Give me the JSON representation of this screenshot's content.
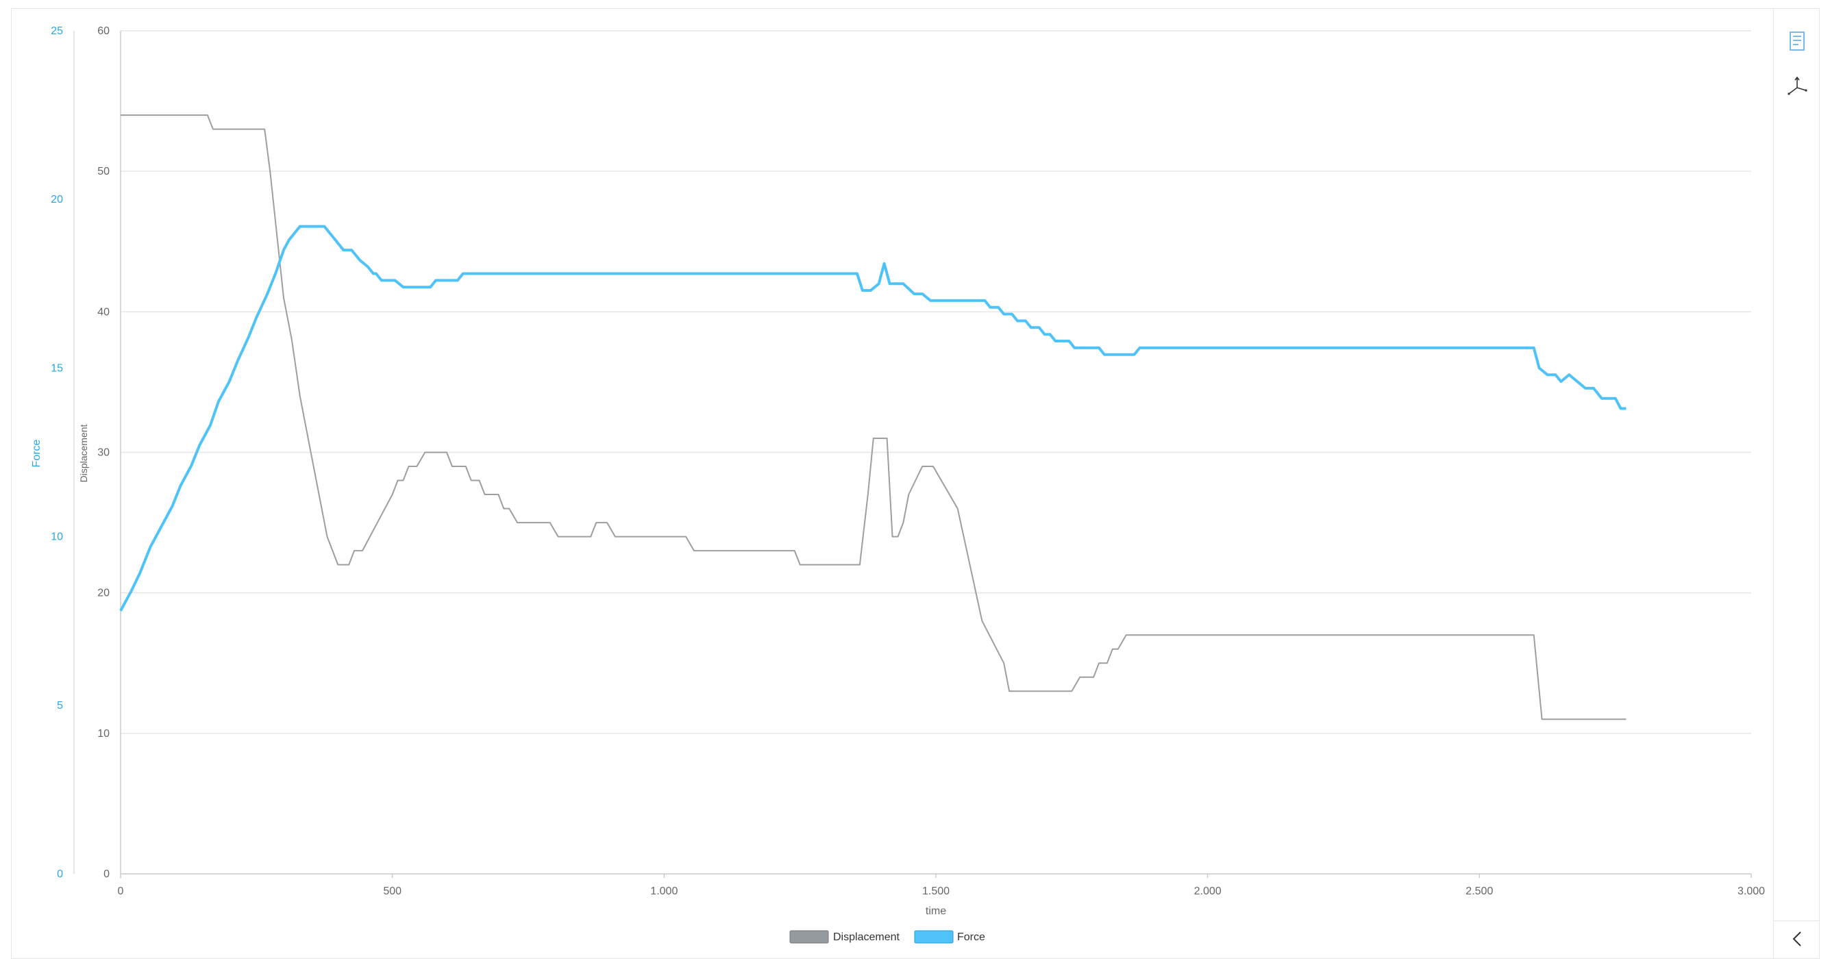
{
  "colors": {
    "displacement": "#9e9e9e",
    "displacement_legend": "#959a9f",
    "force": "#4fc3f7",
    "force_axis": "#29a8e0",
    "axis_text": "#666666",
    "grid": "#e6e6e6"
  },
  "toolbar": {
    "icons": [
      "document-icon",
      "axes-3d-icon",
      "chevron-left-icon"
    ]
  },
  "chart_data": {
    "type": "line",
    "xlabel": "time",
    "ylabel_left_outer": "Force",
    "ylabel_left_inner": "Displacement",
    "xlim": [
      0,
      3000
    ],
    "x_ticks": [
      0,
      500,
      1000,
      1500,
      2000,
      2500,
      3000
    ],
    "x_tick_labels": [
      "0",
      "500",
      "1.000",
      "1.500",
      "2.000",
      "2.500",
      "3.000"
    ],
    "displacement_axis": {
      "ylim": [
        0,
        60
      ],
      "ticks": [
        "0",
        "10",
        "20",
        "30",
        "40",
        "50",
        "60"
      ]
    },
    "force_axis": {
      "ylim": [
        0,
        25
      ],
      "ticks": [
        "0",
        "5",
        "10",
        "15",
        "20",
        "25"
      ]
    },
    "grid": true,
    "legend_position": "bottom-center",
    "legend": [
      "Displacement",
      "Force"
    ],
    "series": [
      {
        "name": "Displacement",
        "axis": "displacement",
        "points": [
          [
            0,
            54
          ],
          [
            160,
            54
          ],
          [
            170,
            53
          ],
          [
            265,
            53
          ],
          [
            275,
            50
          ],
          [
            300,
            41
          ],
          [
            315,
            38
          ],
          [
            330,
            34
          ],
          [
            345,
            31
          ],
          [
            360,
            28
          ],
          [
            380,
            24
          ],
          [
            400,
            22
          ],
          [
            420,
            22
          ],
          [
            430,
            23
          ],
          [
            445,
            23
          ],
          [
            500,
            27
          ],
          [
            510,
            28
          ],
          [
            520,
            28
          ],
          [
            530,
            29
          ],
          [
            545,
            29
          ],
          [
            560,
            30
          ],
          [
            600,
            30
          ],
          [
            610,
            29
          ],
          [
            635,
            29
          ],
          [
            645,
            28
          ],
          [
            660,
            28
          ],
          [
            670,
            27
          ],
          [
            695,
            27
          ],
          [
            705,
            26
          ],
          [
            715,
            26
          ],
          [
            730,
            25
          ],
          [
            790,
            25
          ],
          [
            805,
            24
          ],
          [
            865,
            24
          ],
          [
            875,
            25
          ],
          [
            895,
            25
          ],
          [
            910,
            24
          ],
          [
            1040,
            24
          ],
          [
            1055,
            23
          ],
          [
            1240,
            23
          ],
          [
            1250,
            22
          ],
          [
            1360,
            22
          ],
          [
            1375,
            27
          ],
          [
            1385,
            31
          ],
          [
            1410,
            31
          ],
          [
            1420,
            24
          ],
          [
            1430,
            24
          ],
          [
            1440,
            25
          ],
          [
            1450,
            27
          ],
          [
            1475,
            29
          ],
          [
            1495,
            29
          ],
          [
            1540,
            26
          ],
          [
            1585,
            18
          ],
          [
            1625,
            15
          ],
          [
            1635,
            13
          ],
          [
            1750,
            13
          ],
          [
            1765,
            14
          ],
          [
            1790,
            14
          ],
          [
            1800,
            15
          ],
          [
            1815,
            15
          ],
          [
            1825,
            16
          ],
          [
            1835,
            16
          ],
          [
            1850,
            17
          ],
          [
            2600,
            17
          ],
          [
            2615,
            11
          ],
          [
            2770,
            11
          ]
        ]
      },
      {
        "name": "Force",
        "axis": "force",
        "points": [
          [
            0,
            7.8
          ],
          [
            20,
            8.4
          ],
          [
            35,
            8.9
          ],
          [
            55,
            9.7
          ],
          [
            75,
            10.3
          ],
          [
            95,
            10.9
          ],
          [
            110,
            11.5
          ],
          [
            130,
            12.1
          ],
          [
            145,
            12.7
          ],
          [
            165,
            13.3
          ],
          [
            180,
            14.0
          ],
          [
            200,
            14.6
          ],
          [
            215,
            15.2
          ],
          [
            235,
            15.9
          ],
          [
            250,
            16.5
          ],
          [
            270,
            17.2
          ],
          [
            285,
            17.8
          ],
          [
            300,
            18.5
          ],
          [
            310,
            18.8
          ],
          [
            320,
            19.0
          ],
          [
            330,
            19.2
          ],
          [
            350,
            19.2
          ],
          [
            375,
            19.2
          ],
          [
            395,
            18.8
          ],
          [
            410,
            18.5
          ],
          [
            425,
            18.5
          ],
          [
            440,
            18.2
          ],
          [
            455,
            18.0
          ],
          [
            465,
            17.8
          ],
          [
            470,
            17.8
          ],
          [
            480,
            17.6
          ],
          [
            490,
            17.6
          ],
          [
            500,
            17.6
          ],
          [
            505,
            17.6
          ],
          [
            520,
            17.4
          ],
          [
            570,
            17.4
          ],
          [
            580,
            17.6
          ],
          [
            620,
            17.6
          ],
          [
            630,
            17.8
          ],
          [
            1355,
            17.8
          ],
          [
            1365,
            17.3
          ],
          [
            1380,
            17.3
          ],
          [
            1395,
            17.5
          ],
          [
            1405,
            18.1
          ],
          [
            1415,
            17.5
          ],
          [
            1440,
            17.5
          ],
          [
            1460,
            17.2
          ],
          [
            1475,
            17.2
          ],
          [
            1490,
            17.0
          ],
          [
            1590,
            17.0
          ],
          [
            1600,
            16.8
          ],
          [
            1615,
            16.8
          ],
          [
            1625,
            16.6
          ],
          [
            1640,
            16.6
          ],
          [
            1650,
            16.4
          ],
          [
            1665,
            16.4
          ],
          [
            1675,
            16.2
          ],
          [
            1690,
            16.2
          ],
          [
            1700,
            16.0
          ],
          [
            1710,
            16.0
          ],
          [
            1720,
            15.8
          ],
          [
            1745,
            15.8
          ],
          [
            1755,
            15.6
          ],
          [
            1800,
            15.6
          ],
          [
            1810,
            15.4
          ],
          [
            1865,
            15.4
          ],
          [
            1875,
            15.6
          ],
          [
            2600,
            15.6
          ],
          [
            2610,
            15.0
          ],
          [
            2625,
            14.8
          ],
          [
            2640,
            14.8
          ],
          [
            2650,
            14.6
          ],
          [
            2665,
            14.8
          ],
          [
            2695,
            14.4
          ],
          [
            2710,
            14.4
          ],
          [
            2725,
            14.1
          ],
          [
            2750,
            14.1
          ],
          [
            2760,
            13.8
          ],
          [
            2770,
            13.8
          ]
        ]
      }
    ]
  }
}
